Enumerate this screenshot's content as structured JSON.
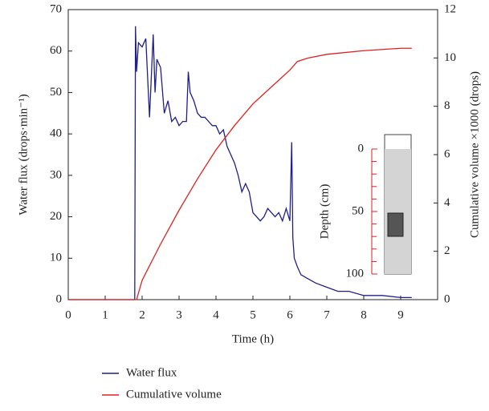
{
  "chart_data": {
    "type": "line",
    "xlabel": "Time (h)",
    "ylabel": "Water flux (drops·min⁻¹)",
    "y2label": "Cumulative volume ×1000 (drops)",
    "xlim": [
      0,
      10
    ],
    "xticks": [
      0,
      1,
      2,
      3,
      4,
      5,
      6,
      7,
      8,
      9
    ],
    "ylim": [
      0,
      70
    ],
    "yticks": [
      0,
      10,
      20,
      30,
      40,
      50,
      60,
      70
    ],
    "y2lim": [
      0,
      12
    ],
    "y2ticks": [
      0,
      2,
      4,
      6,
      8,
      10,
      12
    ],
    "series": [
      {
        "name": "Water flux",
        "color": "#1f1f8c",
        "x": [
          0,
          1.8,
          1.82,
          1.85,
          1.9,
          2.0,
          2.1,
          2.2,
          2.3,
          2.35,
          2.4,
          2.5,
          2.6,
          2.7,
          2.8,
          2.9,
          3.0,
          3.1,
          3.2,
          3.25,
          3.3,
          3.4,
          3.5,
          3.6,
          3.7,
          3.8,
          3.9,
          4.0,
          4.1,
          4.2,
          4.3,
          4.4,
          4.5,
          4.6,
          4.7,
          4.8,
          4.9,
          5.0,
          5.1,
          5.2,
          5.3,
          5.4,
          5.5,
          5.6,
          5.7,
          5.8,
          5.9,
          6.0,
          6.05,
          6.08,
          6.12,
          6.2,
          6.3,
          6.5,
          6.7,
          7.0,
          7.3,
          7.6,
          8.0,
          8.5,
          9.0,
          9.3
        ],
        "values": [
          0,
          0,
          66,
          55,
          62,
          61,
          63,
          44,
          64,
          50,
          58,
          56,
          45,
          48,
          43,
          44,
          42,
          43,
          43,
          55,
          50,
          48,
          45,
          44,
          44,
          43,
          42,
          42,
          40,
          41,
          37,
          35,
          33,
          30,
          26,
          28,
          26,
          21,
          20,
          19,
          20,
          22,
          21,
          20,
          21,
          19,
          22,
          19,
          38,
          15,
          10,
          8,
          6,
          5,
          4,
          3,
          2,
          2,
          1,
          1,
          0.5,
          0.5
        ]
      },
      {
        "name": "Cumulative volume",
        "color": "#e02020",
        "axis": "y2",
        "x": [
          0,
          1.85,
          2,
          2.5,
          3,
          3.5,
          4,
          4.5,
          5,
          5.5,
          6,
          6.2,
          6.5,
          7,
          8,
          9,
          9.3
        ],
        "values": [
          0,
          0,
          0.8,
          2.3,
          3.7,
          5.0,
          6.2,
          7.2,
          8.1,
          8.8,
          9.5,
          9.85,
          10.0,
          10.15,
          10.3,
          10.4,
          10.4
        ]
      }
    ],
    "inset": {
      "ylabel": "Depth (cm)",
      "ylim": [
        0,
        100
      ],
      "yticks": [
        0,
        50,
        100
      ]
    }
  }
}
